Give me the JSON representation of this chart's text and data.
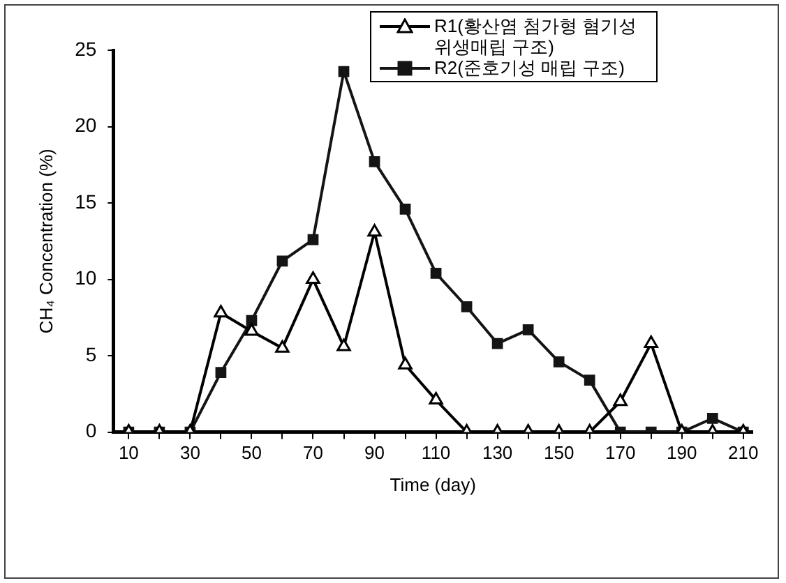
{
  "chart_data": {
    "type": "line",
    "xlabel": "Time (day)",
    "ylabel": "CH₄ Concentration (%)",
    "x": [
      10,
      20,
      30,
      40,
      50,
      60,
      70,
      80,
      90,
      100,
      110,
      120,
      130,
      140,
      150,
      160,
      170,
      180,
      190,
      200,
      210
    ],
    "series": [
      {
        "name": "R1(황산염 첨가형 혐기성 위생매립 구조)",
        "color": "#000000",
        "marker": "triangle",
        "values": [
          0,
          0,
          0,
          7.8,
          6.6,
          5.5,
          10,
          5.6,
          13.1,
          4.4,
          2.1,
          0,
          0,
          0,
          0,
          0,
          2,
          5.8,
          0,
          0,
          0
        ]
      },
      {
        "name": "R2(준호기성 매립 구조)",
        "color": "#141414",
        "marker": "square",
        "values": [
          0,
          0,
          0,
          3.9,
          7.3,
          11.2,
          12.6,
          23.6,
          17.7,
          14.6,
          10.4,
          8.2,
          5.8,
          6.7,
          4.6,
          3.4,
          0,
          0,
          0,
          0.9,
          0
        ]
      }
    ],
    "xlim": [
      5,
      213
    ],
    "ylim": [
      0,
      25
    ],
    "xticks": [
      10,
      {
        "value": 20,
        "label": null
      },
      30,
      {
        "value": 40,
        "label": null
      },
      50,
      {
        "value": 60,
        "label": null
      },
      70,
      {
        "value": 80,
        "label": null
      },
      90,
      {
        "value": 100,
        "label": null
      },
      110,
      {
        "value": 120,
        "label": null
      },
      130,
      {
        "value": 140,
        "label": null
      },
      150,
      {
        "value": 160,
        "label": null
      },
      170,
      {
        "value": 180,
        "label": null
      },
      190,
      {
        "value": 200,
        "label": null
      },
      210
    ],
    "yticks": [
      0,
      5,
      10,
      15,
      20,
      25
    ],
    "grid": false,
    "legend": "top right",
    "line_style": "solid"
  }
}
